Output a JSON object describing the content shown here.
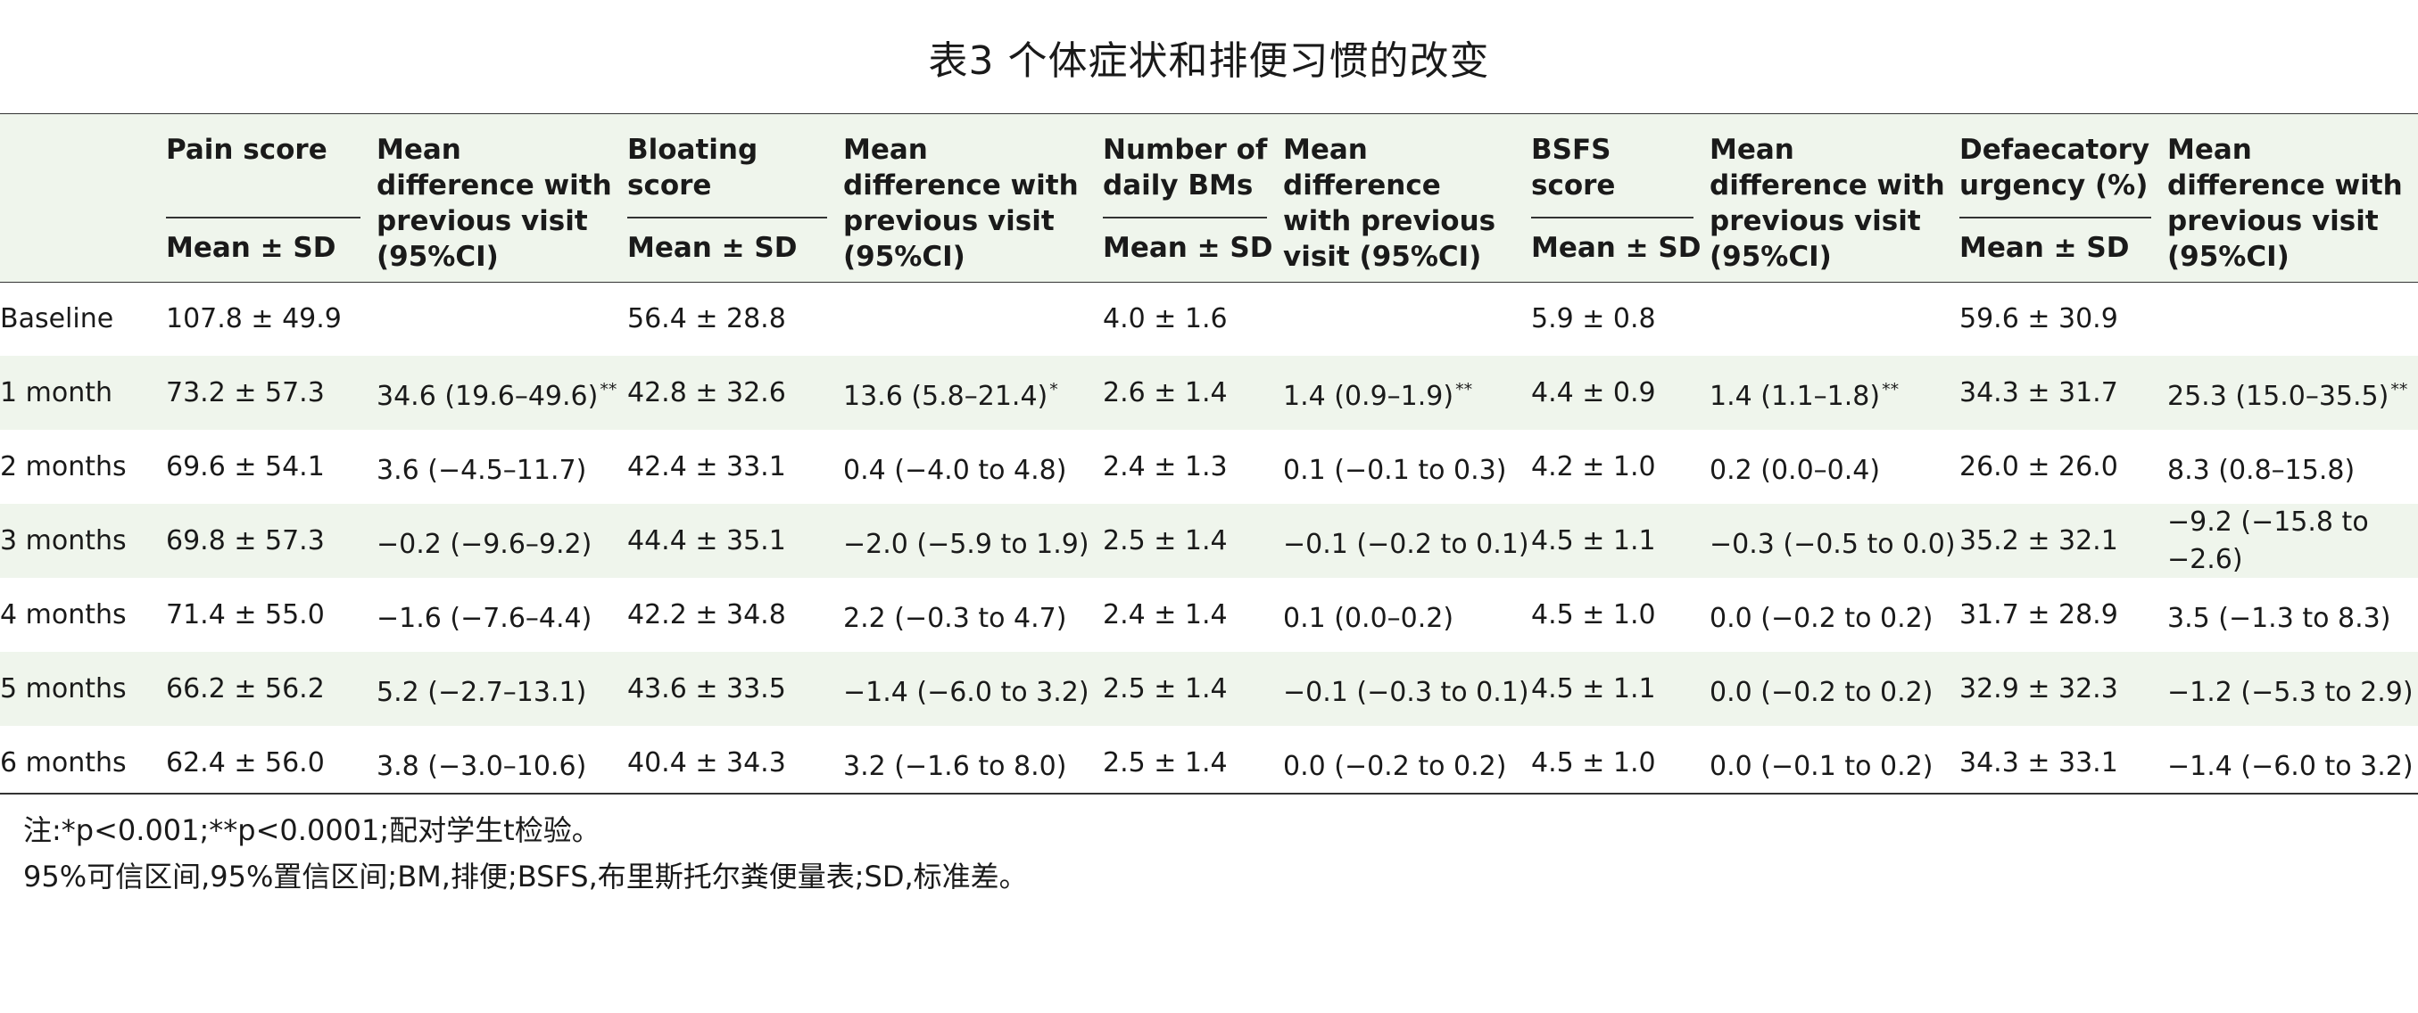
{
  "title": "表3 个体症状和排便习惯的改变",
  "header": {
    "pain": "Pain score",
    "bloating": "Bloating score",
    "bms": "Number of daily BMs",
    "bsfs": "BSFS score",
    "urgency": "Defaecatory urgency (%)",
    "mean_diff": "Mean difference with previous visit (95%CI)",
    "mean_sd": "Mean ± SD"
  },
  "rows": [
    {
      "label": "Baseline",
      "c1": "107.8 ± 49.9",
      "d1": "",
      "s1": "",
      "c2": "56.4 ± 28.8",
      "d2": "",
      "s2": "",
      "c3": "4.0 ± 1.6",
      "d3": "",
      "s3": "",
      "c4": "5.9 ± 0.8",
      "d4": "",
      "s4": "",
      "c5": "59.6 ± 30.9",
      "d5": "",
      "s5": ""
    },
    {
      "label": "1 month",
      "c1": "73.2 ± 57.3",
      "d1": "34.6 (19.6–49.6)",
      "s1": "**",
      "c2": "42.8 ± 32.6",
      "d2": "13.6 (5.8–21.4)",
      "s2": "*",
      "c3": "2.6 ± 1.4",
      "d3": "1.4 (0.9–1.9)",
      "s3": "**",
      "c4": "4.4 ± 0.9",
      "d4": "1.4 (1.1–1.8)",
      "s4": "**",
      "c5": "34.3 ± 31.7",
      "d5": "25.3 (15.0–35.5)",
      "s5": "**"
    },
    {
      "label": "2 months",
      "c1": "69.6 ± 54.1",
      "d1": "3.6 (−4.5–11.7)",
      "s1": "",
      "c2": "42.4 ± 33.1",
      "d2": "0.4 (−4.0 to 4.8)",
      "s2": "",
      "c3": "2.4 ± 1.3",
      "d3": "0.1 (−0.1 to 0.3)",
      "s3": "",
      "c4": "4.2 ± 1.0",
      "d4": "0.2 (0.0–0.4)",
      "s4": "",
      "c5": "26.0 ± 26.0",
      "d5": "8.3 (0.8–15.8)",
      "s5": ""
    },
    {
      "label": "3 months",
      "c1": "69.8 ± 57.3",
      "d1": "−0.2 (−9.6–9.2)",
      "s1": "",
      "c2": "44.4 ± 35.1",
      "d2": "−2.0 (−5.9 to 1.9)",
      "s2": "",
      "c3": "2.5 ± 1.4",
      "d3": "−0.1 (−0.2 to 0.1)",
      "s3": "",
      "c4": "4.5 ± 1.1",
      "d4": "−0.3 (−0.5 to 0.0)",
      "s4": "",
      "c5": "35.2 ± 32.1",
      "d5": "−9.2 (−15.8 to −2.6)",
      "s5": ""
    },
    {
      "label": "4 months",
      "c1": "71.4 ± 55.0",
      "d1": "−1.6 (−7.6–4.4)",
      "s1": "",
      "c2": "42.2 ± 34.8",
      "d2": "2.2 (−0.3 to 4.7)",
      "s2": "",
      "c3": "2.4 ± 1.4",
      "d3": "0.1 (0.0–0.2)",
      "s3": "",
      "c4": "4.5 ± 1.0",
      "d4": "0.0 (−0.2 to 0.2)",
      "s4": "",
      "c5": "31.7 ± 28.9",
      "d5": "3.5 (−1.3 to 8.3)",
      "s5": ""
    },
    {
      "label": "5 months",
      "c1": "66.2 ± 56.2",
      "d1": "5.2 (−2.7–13.1)",
      "s1": "",
      "c2": "43.6 ± 33.5",
      "d2": "−1.4 (−6.0 to 3.2)",
      "s2": "",
      "c3": "2.5 ± 1.4",
      "d3": "−0.1 (−0.3 to 0.1)",
      "s3": "",
      "c4": "4.5 ± 1.1",
      "d4": "0.0 (−0.2 to 0.2)",
      "s4": "",
      "c5": "32.9 ± 32.3",
      "d5": "−1.2 (−5.3 to 2.9)",
      "s5": ""
    },
    {
      "label": "6 months",
      "c1": "62.4 ± 56.0",
      "d1": "3.8 (−3.0–10.6)",
      "s1": "",
      "c2": "40.4 ± 34.3",
      "d2": "3.2 (−1.6 to 8.0)",
      "s2": "",
      "c3": "2.5 ± 1.4",
      "d3": "0.0 (−0.2 to 0.2)",
      "s3": "",
      "c4": "4.5 ± 1.0",
      "d4": "0.0 (−0.1 to 0.2)",
      "s4": "",
      "c5": "34.3 ± 33.1",
      "d5": "−1.4 (−6.0 to 3.2)",
      "s5": ""
    }
  ],
  "notes": {
    "line1": "注:*p<0.001;**p<0.0001;配对学生t检验。",
    "line2": "95%可信区间,95%置信区间;BM,排便;BSFS,布里斯托尔粪便量表;SD,标准差。"
  }
}
